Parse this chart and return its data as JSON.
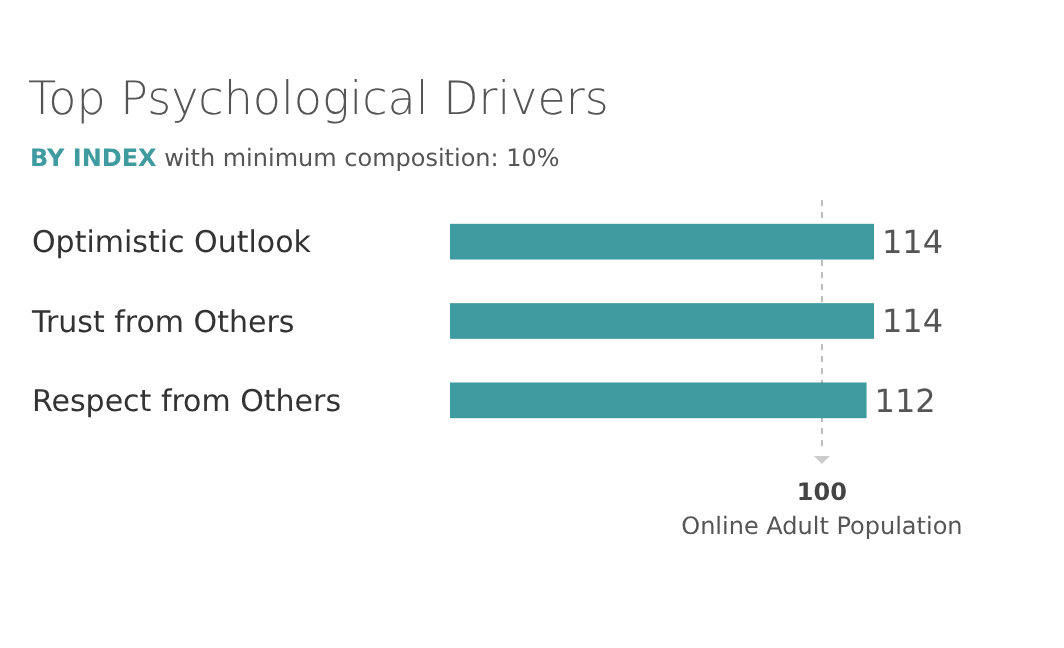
{
  "chart_data": {
    "type": "bar",
    "orientation": "horizontal",
    "title": "Top Psychological Drivers",
    "subtitle": "BY INDEX with minimum composition: 10%",
    "categories": [
      "Optimistic Outlook",
      "Trust from Others",
      "Respect from Others"
    ],
    "values": [
      114,
      114,
      112
    ],
    "color": "#3f9ba0",
    "xlim": [
      0,
      114
    ],
    "xticks": [
      100
    ],
    "tick_labels": "x",
    "data_labels": true,
    "ref_lines": [
      {
        "axis": "x",
        "value": 100,
        "color": "#bbbbbb",
        "line_style": "dashed"
      }
    ],
    "annotations": [
      "Online Adult Population"
    ]
  }
}
